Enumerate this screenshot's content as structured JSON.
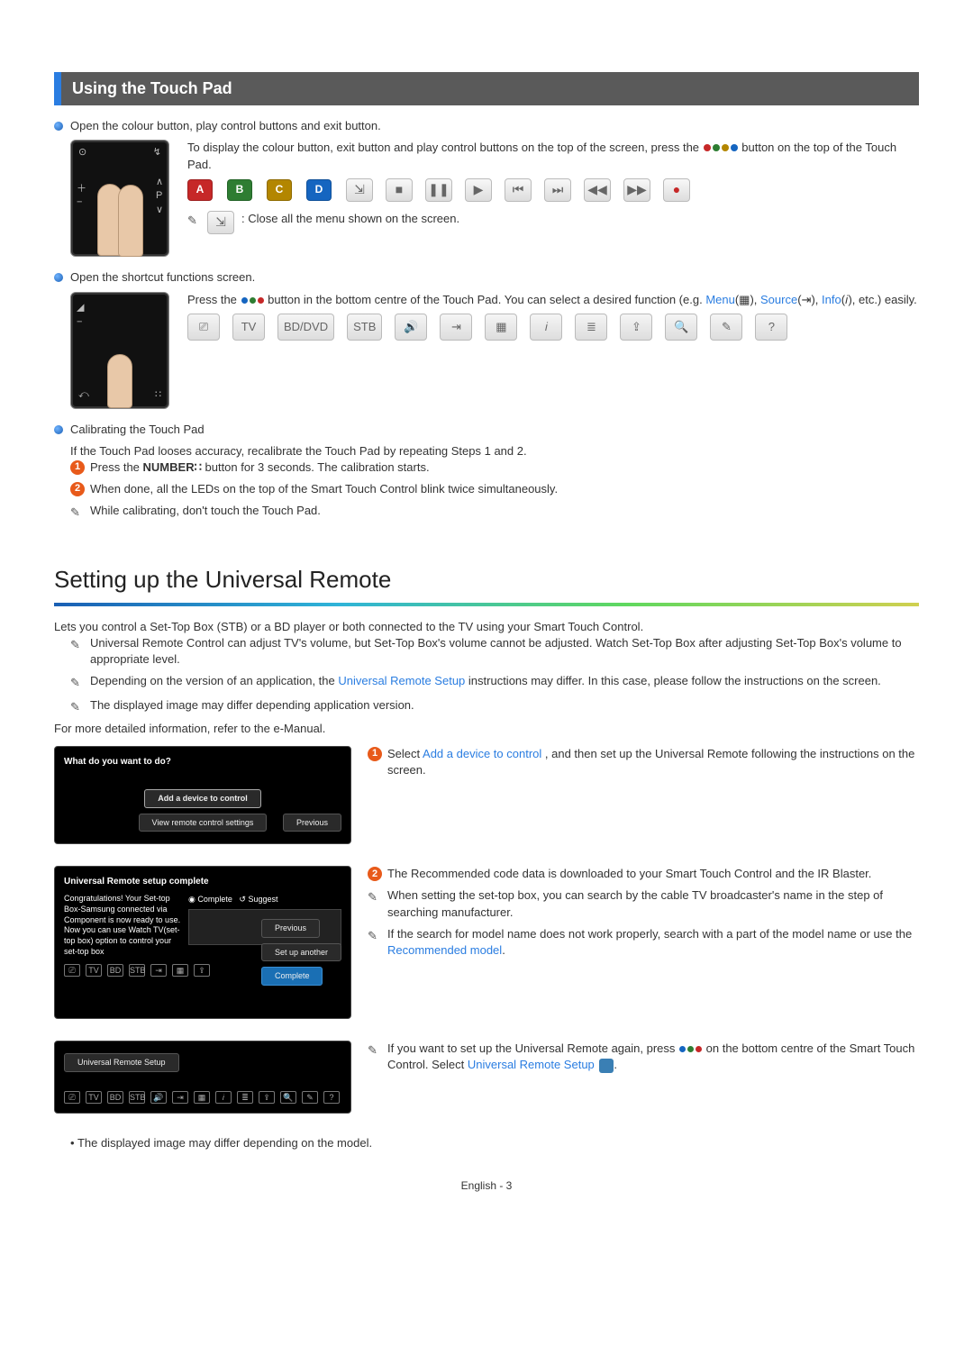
{
  "section1": {
    "title": "Using the Touch Pad",
    "item1": {
      "heading": "Open the colour button, play control buttons and exit button.",
      "body_pre": "To display the colour button, exit button and play control buttons on the top of the screen, press the ",
      "body_post": " button on the top of the Touch Pad.",
      "buttons": [
        {
          "label": "A",
          "bg": "#c62828"
        },
        {
          "label": "B",
          "bg": "#2e7d32"
        },
        {
          "label": "C",
          "bg": "#b38600"
        },
        {
          "label": "D",
          "bg": "#1565c0"
        }
      ],
      "controls": [
        "⇲",
        "■",
        "❚❚",
        "▶",
        "⏮",
        "⏭",
        "◀◀",
        "▶▶",
        "●"
      ],
      "note": ": Close all the menu shown on the screen."
    },
    "item2": {
      "heading": "Open the shortcut functions screen.",
      "body_pre": "Press the ",
      "body_post": " button in the bottom centre of the Touch Pad. You can select a desired function (e.g. ",
      "menu": "Menu",
      "source": "Source",
      "info": "Info",
      "tail": ", etc.) easily.",
      "shortcuts": [
        "⎚",
        "TV",
        "BD/DVD",
        "STB",
        "🔊",
        "⇥",
        "▦",
        "𝑖",
        "≣",
        "⇪",
        "🔍",
        "✎",
        "?"
      ]
    },
    "item3": {
      "heading": "Calibrating the Touch Pad",
      "body": "If the Touch Pad looses accuracy, recalibrate the Touch Pad by repeating Steps 1 and 2.",
      "step1_pre": "Press the ",
      "step1_bold": "NUMBER",
      "step1_post": " button for 3 seconds. The calibration starts.",
      "step2": "When done, all the LEDs on the top of the Smart Touch Control blink twice simultaneously.",
      "note": "While calibrating, don't touch the Touch Pad."
    }
  },
  "section2": {
    "title": "Setting up the Universal Remote",
    "intro": "Lets you control a Set-Top Box (STB) or a BD player or both connected to the TV using your Smart Touch Control.",
    "note1": "Universal Remote Control can adjust TV's volume, but Set-Top Box's volume cannot be adjusted. Watch Set-Top Box after adjusting Set-Top Box's volume to appropriate level.",
    "note2_pre": "Depending on the version of an application, the ",
    "note2_link": "Universal Remote Setup",
    "note2_post": " instructions may differ. In this case, please follow the instructions on the screen.",
    "note3": "The displayed image may differ depending application version.",
    "more": "For more detailed information, refer to the e-Manual.",
    "scr1": {
      "q": "What do you want to do?",
      "b1": "Add a device to control",
      "b2": "View remote control settings",
      "prev": "Previous"
    },
    "step1_pre": "Select ",
    "step1_link": "Add a device to control",
    "step1_post": ", and then set up the Universal Remote following the instructions on the screen.",
    "scr2": {
      "title": "Universal Remote setup complete",
      "msg": "Congratulations! Your Set-top Box-Samsung connected via Component is now ready to use. Now you can use Watch TV(set-top box) option to control your set-top box",
      "complete": "Complete",
      "suggest": "Suggest",
      "prev": "Previous",
      "another": "Set up another",
      "done": "Complete"
    },
    "step2": "The Recommended code data is downloaded to your Smart Touch Control and the IR Blaster.",
    "step2_n1": "When setting the set-top box, you can search by the cable TV broadcaster's name in the step of searching manufacturer.",
    "step2_n2_pre": "If the search for model name does not work properly, search with a part of the model name or use the ",
    "step2_n2_link": "Recommended model",
    "scr3": {
      "title": "Universal Remote Setup"
    },
    "step3_pre": "If you want to set up the Universal Remote again,  press ",
    "step3_mid": " on the bottom centre of the Smart Touch Control. Select ",
    "step3_link": "Universal Remote Setup",
    "disclaimer": "The displayed image may differ depending on the model."
  },
  "footer": {
    "lang": "English",
    "page": "3"
  },
  "colors": {
    "dot_red": "#c62828",
    "dot_green": "#2e7d32",
    "dot_yellow": "#b38600",
    "dot_blue": "#1565c0",
    "three_dot_a": "#1565c0",
    "three_dot_b": "#2e7d32",
    "three_dot_c": "#c62828"
  }
}
